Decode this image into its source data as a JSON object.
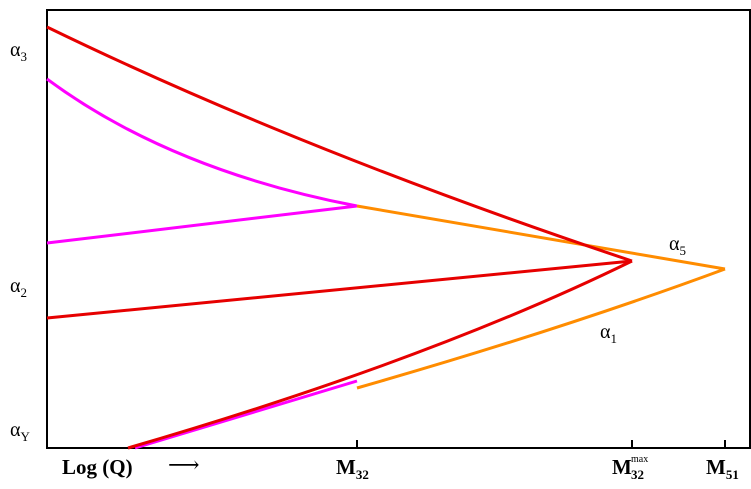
{
  "colors": {
    "red": "#e60000",
    "magenta": "#ff00ff",
    "orange": "#ff8c00",
    "axis": "#000000"
  },
  "labels": {
    "alpha3": {
      "base": "α",
      "sub": "3"
    },
    "alpha2": {
      "base": "α",
      "sub": "2"
    },
    "alphaY": {
      "base": "α",
      "sub": "Y"
    },
    "alpha5": {
      "base": "α",
      "sub": "5"
    },
    "alpha1": {
      "base": "α",
      "sub": "1"
    },
    "xaxis_title": "Log (Q)",
    "xaxis_arrow": "⟶",
    "m32": {
      "base": "M",
      "sub": "32"
    },
    "m32max": {
      "base": "M",
      "sub": "32",
      "sup": "max"
    },
    "m51": {
      "base": "M",
      "sub": "51"
    }
  }
}
